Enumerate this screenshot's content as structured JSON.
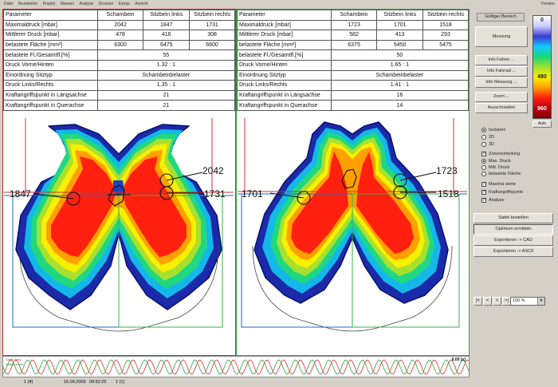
{
  "menu": {
    "items": [
      "Datei",
      "Bearbeiten",
      "Projekt",
      "Messen",
      "Analyse",
      "Drucken",
      "Extras",
      "Ansicht"
    ],
    "right": "Fenster"
  },
  "left_panel": {
    "header": [
      "Parameter",
      "Schambein",
      "Sitzbein links",
      "Sitzbein rechts"
    ],
    "rows3": [
      [
        "Maximaldruck [mbar]",
        "2042",
        "1847",
        "1731"
      ],
      [
        "Mittlerer Druck [mbar]",
        "478",
        "416",
        "308"
      ],
      [
        "belastete Fläche [mm²]",
        "6300",
        "6475",
        "6600"
      ]
    ],
    "rows1": [
      [
        "belastete Fl./Gesamtfl.[%]",
        "55"
      ],
      [
        "Druck Vorne/Hinten",
        "1.32 : 1"
      ],
      [
        "Einordnung Sitztyp",
        "Schambeinbelaster"
      ],
      [
        "Druck Links/Rechts",
        "1.35 : 1"
      ],
      [
        "Kraftangriffspunkt in Längsachse",
        "21"
      ],
      [
        "Kraftangriffspunkt in Querachse",
        "21"
      ]
    ],
    "callouts": [
      "2042",
      "1847",
      "1731"
    ]
  },
  "right_panel": {
    "header": [
      "Parameter",
      "Schambein",
      "Sitzbein links",
      "Sitzbein rechts"
    ],
    "rows3": [
      [
        "Maximaldruck [mbar]",
        "1723",
        "1701",
        "1518"
      ],
      [
        "Mittlerer Druck [mbar]",
        "582",
        "413",
        "293"
      ],
      [
        "belastete Fläche [mm²]",
        "6375",
        "5450",
        "5475"
      ]
    ],
    "rows1": [
      [
        "belastete Fl./Gesamtfl.[%]",
        "50"
      ],
      [
        "Druck Vorne/Hinten",
        "1.65 : 1"
      ],
      [
        "Einordnung Sitztyp",
        "Schambeinbelaster"
      ],
      [
        "Druck Links/Rechts",
        "1.41 : 1"
      ],
      [
        "Kraftangriffspunkt in Längsachse",
        "16"
      ],
      [
        "Kraftangriffspunkt in Querachse",
        "14"
      ]
    ],
    "callouts": [
      "1723",
      "1701",
      "1518"
    ]
  },
  "sidebar": {
    "title": "Gültiger Bereich",
    "scale_labels": [
      "0",
      "480",
      "960"
    ],
    "scale_colors": [
      "#ffffff",
      "#c8ccff",
      "#3a3ad0",
      "#12c8ff",
      "#18d878",
      "#a0e030",
      "#f8f000",
      "#ffa000",
      "#ff2010",
      "#c00010",
      "#800000"
    ],
    "scale_button": "Auto",
    "buttons": {
      "messung": "Messung",
      "info_fahrer": "Info Fahrer ...",
      "info_fahrrad": "Info Fahrrad ...",
      "info_messung": "Info Messung ...",
      "zoom": "Zoom ...",
      "ausschneiden": "Ausschneiden"
    },
    "view_options": [
      {
        "label": "Isobaren",
        "on": true
      },
      {
        "label": "2D",
        "on": false
      },
      {
        "label": "3D",
        "on": false
      }
    ],
    "zonen_label": "Zoneneinteilung",
    "zone_options": [
      {
        "label": "Max. Druck",
        "on": true
      },
      {
        "label": "Mitt. Druck",
        "on": false
      },
      {
        "label": "belastete Fläche",
        "on": false
      }
    ],
    "checks": [
      {
        "label": "Maxima werte",
        "on": true
      },
      {
        "label": "Kraftangriffspunkt",
        "on": true
      },
      {
        "label": "Analyse",
        "on": true
      }
    ],
    "action_buttons": [
      "Sattel bestellen",
      "Optimum ermitteln",
      "Exportieren -> CAD",
      "Exportieren -> ASCII"
    ],
    "nav": [
      "|<",
      "<",
      ">",
      ">|"
    ],
    "zoom_value": "100 %"
  },
  "waveform": {
    "legend_top": "Sattel links",
    "legend_bottom": "Sattel rechts",
    "time": "0.00 [s]"
  },
  "status": {
    "left": "1 (4)",
    "date": "15.09.2009",
    "time": "09:52:25",
    "right": "1 (1)"
  }
}
